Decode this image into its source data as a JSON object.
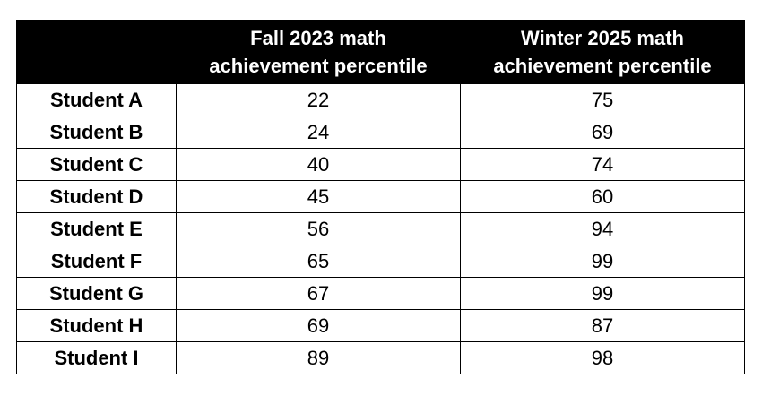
{
  "chart_data": {
    "type": "table",
    "columns": [
      "",
      "Fall 2023 math achievement percentile",
      "Winter 2025 math achievement percentile"
    ],
    "column_header_lines": [
      [
        "Fall 2023 math",
        "achievement percentile"
      ],
      [
        "Winter 2025 math",
        "achievement percentile"
      ]
    ],
    "rows": [
      {
        "label": "Student A",
        "fall_2023": "22",
        "winter_2025": "75"
      },
      {
        "label": "Student B",
        "fall_2023": "24",
        "winter_2025": "69"
      },
      {
        "label": "Student C",
        "fall_2023": "40",
        "winter_2025": "74"
      },
      {
        "label": "Student D",
        "fall_2023": "45",
        "winter_2025": "60"
      },
      {
        "label": "Student E",
        "fall_2023": "56",
        "winter_2025": "94"
      },
      {
        "label": "Student F",
        "fall_2023": "65",
        "winter_2025": "99"
      },
      {
        "label": "Student G",
        "fall_2023": "67",
        "winter_2025": "99"
      },
      {
        "label": "Student H",
        "fall_2023": "69",
        "winter_2025": "87"
      },
      {
        "label": "Student I",
        "fall_2023": "89",
        "winter_2025": "98"
      }
    ],
    "colors": {
      "header_background": "#000000",
      "header_text": "#ffffff",
      "border": "#000000"
    }
  }
}
